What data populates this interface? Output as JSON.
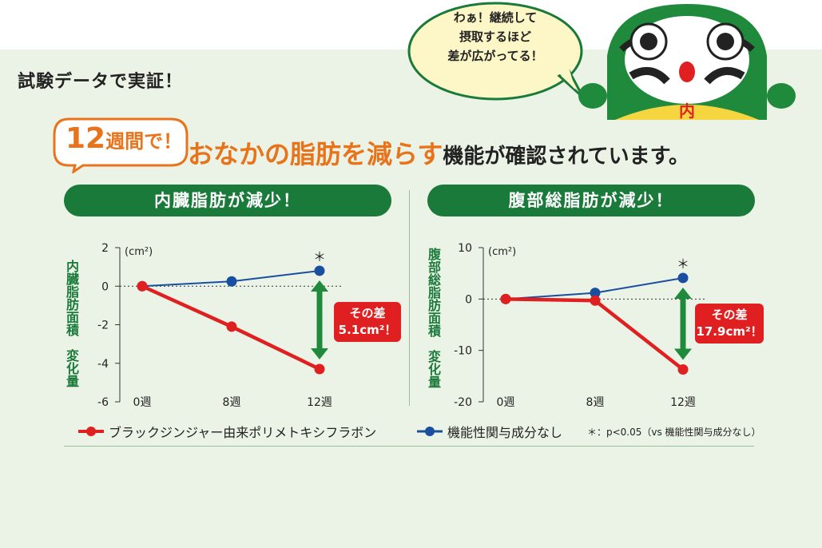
{
  "tab_title": "試験データで実証！",
  "speech_bubble": [
    "わぁ！継続して",
    "摂取するほど",
    "差が広がってる！"
  ],
  "mascot_badge": "内",
  "weeks_badge": {
    "number": "12",
    "suffix": "週間で！"
  },
  "headline": {
    "highlight": "おなかの脂肪を減らす",
    "rest": "機能が確認されています。"
  },
  "colors": {
    "green": "#1a7a3a",
    "red": "#e02020",
    "blue": "#1a4fa0",
    "orange": "#e8731a"
  },
  "chart_data": [
    {
      "type": "line",
      "pill_title": "内臓脂肪が減少！",
      "ylabel": "内臓脂肪面積 変化量",
      "ylabel_parts": [
        "内臓脂肪面積",
        "変化量"
      ],
      "unit": "(cm²)",
      "x": [
        "0週",
        "8週",
        "12週"
      ],
      "ylim": [
        -6,
        2
      ],
      "yticks": [
        "2",
        "0",
        "-2",
        "-4",
        "-6"
      ],
      "ytick_values": [
        2,
        0,
        -2,
        -4,
        -6
      ],
      "series": [
        {
          "name": "ブラックジンジャー由来ポリメトキシフラボン",
          "color": "#e02020",
          "values": [
            0,
            -2.1,
            -4.3
          ]
        },
        {
          "name": "機能性関与成分なし",
          "color": "#1a4fa0",
          "values": [
            0,
            0.25,
            0.8
          ]
        }
      ],
      "significance_mark": "＊",
      "difference_label": [
        "その差",
        "5.1cm²！"
      ]
    },
    {
      "type": "line",
      "pill_title": "腹部総脂肪が減少！",
      "ylabel": "腹部総脂肪面積 変化量",
      "ylabel_parts": [
        "腹部総脂肪面積",
        "変化量"
      ],
      "unit": "(cm²)",
      "x": [
        "0週",
        "8週",
        "12週"
      ],
      "ylim": [
        -20,
        10
      ],
      "yticks": [
        "10",
        "0",
        "-10",
        "-20"
      ],
      "ytick_values": [
        10,
        0,
        -10,
        -20
      ],
      "series": [
        {
          "name": "ブラックジンジャー由来ポリメトキシフラボン",
          "color": "#e02020",
          "values": [
            0,
            -0.3,
            -13.7
          ]
        },
        {
          "name": "機能性関与成分なし",
          "color": "#1a4fa0",
          "values": [
            0,
            1.2,
            4.1
          ]
        }
      ],
      "significance_mark": "＊",
      "difference_label": [
        "その差",
        "17.9cm²！"
      ]
    }
  ],
  "legend": {
    "red_label": "ブラックジンジャー由来ポリメトキシフラボン",
    "blue_label": "機能性関与成分なし",
    "note": "＊：p<0.05（vs 機能性関与成分なし）"
  }
}
